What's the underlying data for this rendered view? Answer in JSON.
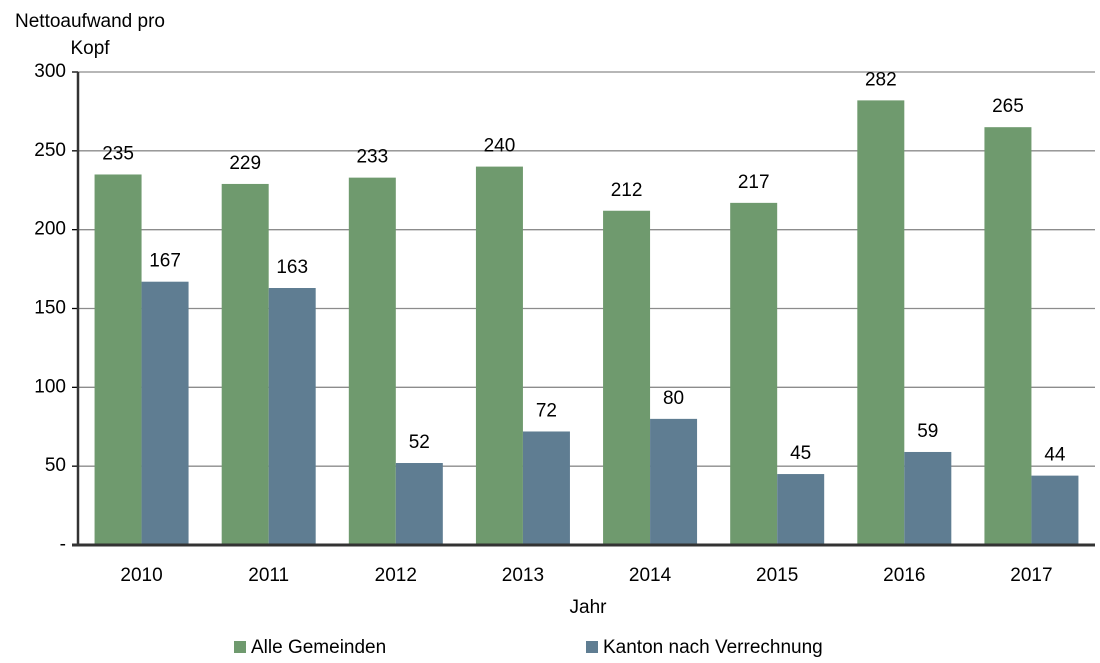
{
  "chart_data": {
    "type": "bar",
    "ylabel": "Nettoaufwand pro Kopf",
    "xlabel": "Jahr",
    "categories": [
      "2010",
      "2011",
      "2012",
      "2013",
      "2014",
      "2015",
      "2016",
      "2017"
    ],
    "series": [
      {
        "name": "Alle Gemeinden",
        "color": "#6f9a6e",
        "values": [
          235,
          229,
          233,
          240,
          212,
          217,
          282,
          265
        ]
      },
      {
        "name": "Kanton nach Verrechnung",
        "color": "#5f7d92",
        "values": [
          167,
          163,
          52,
          72,
          80,
          45,
          59,
          44
        ]
      }
    ],
    "ylim": [
      0,
      300
    ],
    "yticks": [
      {
        "value": 0,
        "label": "-"
      },
      50,
      100,
      150,
      200,
      250,
      300
    ],
    "grid": true,
    "legend": "bottom"
  }
}
